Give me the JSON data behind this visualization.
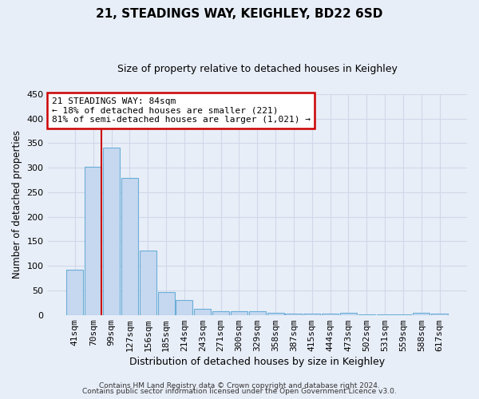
{
  "title": "21, STEADINGS WAY, KEIGHLEY, BD22 6SD",
  "subtitle": "Size of property relative to detached houses in Keighley",
  "xlabel": "Distribution of detached houses by size in Keighley",
  "ylabel": "Number of detached properties",
  "bar_labels": [
    "41sqm",
    "70sqm",
    "99sqm",
    "127sqm",
    "156sqm",
    "185sqm",
    "214sqm",
    "243sqm",
    "271sqm",
    "300sqm",
    "329sqm",
    "358sqm",
    "387sqm",
    "415sqm",
    "444sqm",
    "473sqm",
    "502sqm",
    "531sqm",
    "559sqm",
    "588sqm",
    "617sqm"
  ],
  "bar_values": [
    92,
    301,
    341,
    279,
    131,
    46,
    30,
    13,
    8,
    8,
    7,
    5,
    2,
    3,
    2,
    4,
    1,
    1,
    1,
    4,
    2
  ],
  "bar_color": "#c5d8f0",
  "bar_edge_color": "#6aaed6",
  "vline_color": "#cc0000",
  "ylim": [
    0,
    450
  ],
  "yticks": [
    0,
    50,
    100,
    150,
    200,
    250,
    300,
    350,
    400,
    450
  ],
  "annotation_title": "21 STEADINGS WAY: 84sqm",
  "annotation_line1": "← 18% of detached houses are smaller (221)",
  "annotation_line2": "81% of semi-detached houses are larger (1,021) →",
  "annotation_box_color": "#cc0000",
  "footer1": "Contains HM Land Registry data © Crown copyright and database right 2024.",
  "footer2": "Contains public sector information licensed under the Open Government Licence v3.0.",
  "bg_color": "#e8eef8",
  "grid_color": "#d0d8e8"
}
